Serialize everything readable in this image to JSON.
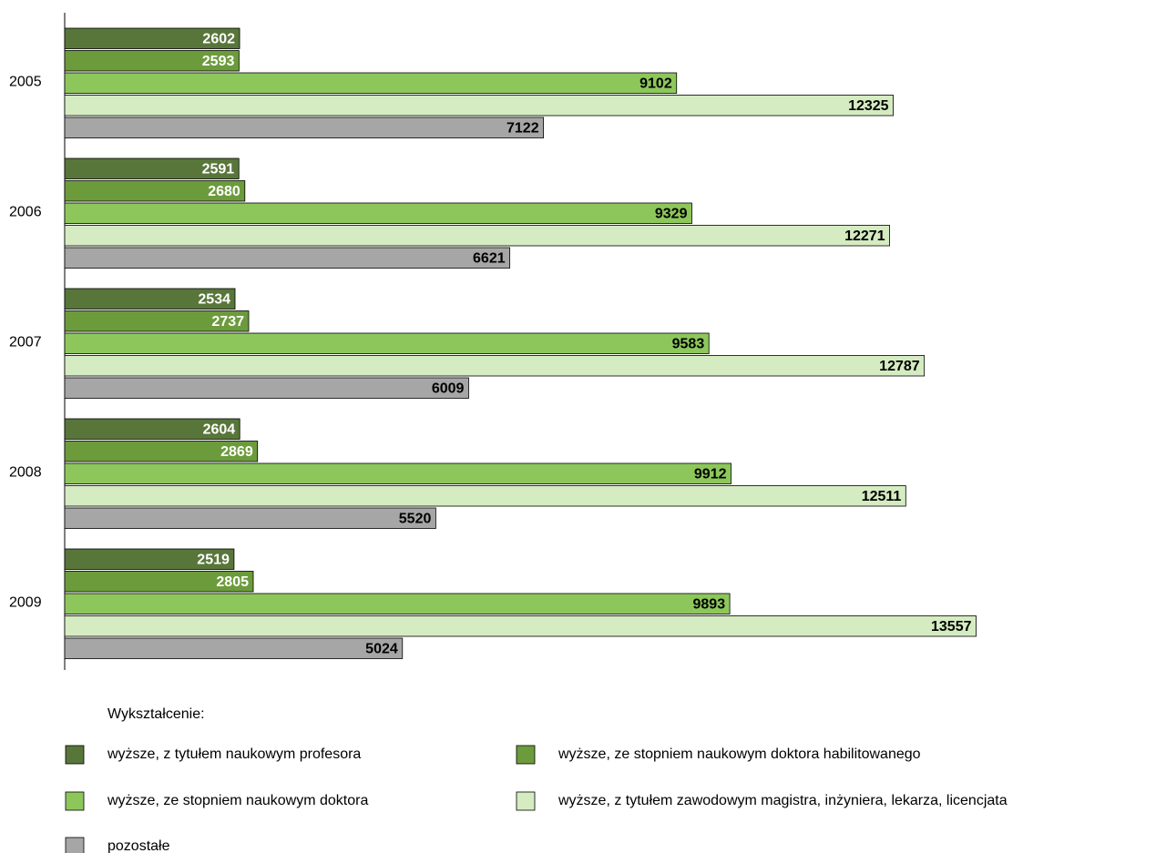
{
  "chart_data": {
    "type": "hbar",
    "categories": [
      "2005",
      "2006",
      "2007",
      "2008",
      "2009"
    ],
    "legend_title": "Wykształcenie:",
    "series": [
      {
        "name": "wyższe, z tytułem naukowym profesora",
        "color": "#58763a",
        "values": [
          2602,
          2591,
          2534,
          2604,
          2519
        ]
      },
      {
        "name": "wyższe, ze stopniem naukowym doktora habilitowanego",
        "color": "#6c9b3c",
        "values": [
          2593,
          2680,
          2737,
          2869,
          2805
        ]
      },
      {
        "name": "wyższe, ze stopniem naukowym doktora",
        "color": "#8dc75b",
        "values": [
          9102,
          9329,
          9583,
          9912,
          9893
        ]
      },
      {
        "name": "wyższe, z tytułem zawodowym magistra, inżyniera, lekarza, licencjata",
        "color": "#d5ebc1",
        "values": [
          12325,
          12271,
          12787,
          12511,
          13557
        ]
      },
      {
        "name": "pozostałe",
        "color": "#a6a6a6",
        "values": [
          7122,
          6621,
          6009,
          5520,
          5024
        ]
      }
    ]
  }
}
